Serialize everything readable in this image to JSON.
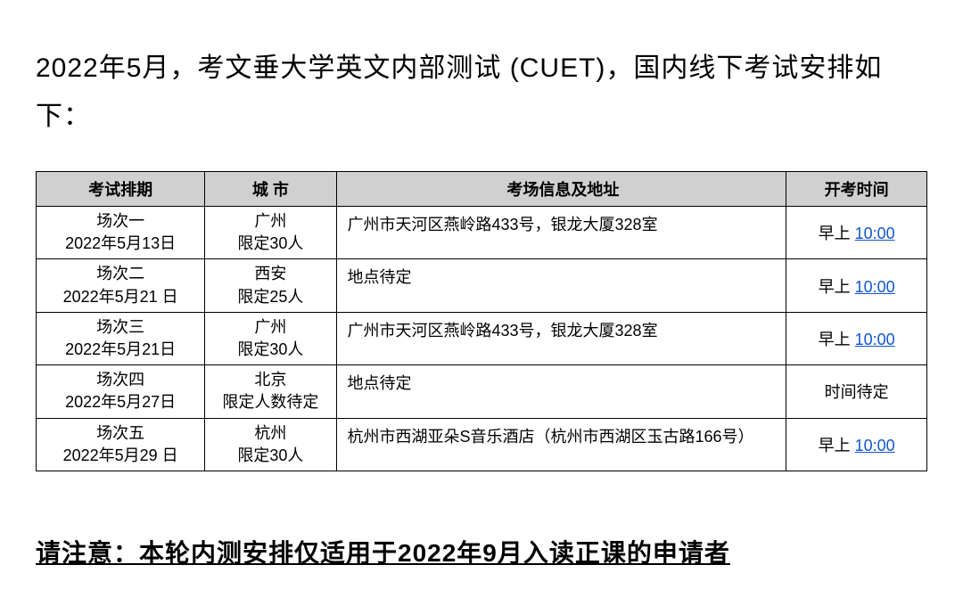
{
  "heading": "2022年5月，考文垂大学英文内部测试 (CUET)，国内线下考试安排如下：",
  "table": {
    "headers": {
      "session": "考试排期",
      "city": "城 市",
      "venue": "考场信息及地址",
      "time": "开考时间"
    },
    "rows": [
      {
        "session_label": "场次一",
        "session_date": "2022年5月13日",
        "city_name": "广州",
        "city_limit": "限定30人",
        "venue": "广州市天河区燕岭路433号，银龙大厦328室",
        "time_prefix": "早上 ",
        "time_link": "10:00",
        "time_plain": ""
      },
      {
        "session_label": "场次二",
        "session_date": "2022年5月21 日",
        "city_name": "西安",
        "city_limit": "限定25人",
        "venue": "地点待定",
        "time_prefix": "早上 ",
        "time_link": "10:00",
        "time_plain": ""
      },
      {
        "session_label": "场次三",
        "session_date": "2022年5月21日",
        "city_name": "广州",
        "city_limit": "限定30人",
        "venue": "广州市天河区燕岭路433号，银龙大厦328室",
        "time_prefix": "早上 ",
        "time_link": "10:00",
        "time_plain": ""
      },
      {
        "session_label": "场次四",
        "session_date": "2022年5月27日",
        "city_name": "北京",
        "city_limit": "限定人数待定",
        "venue": "地点待定",
        "time_prefix": "",
        "time_link": "",
        "time_plain": "时间待定"
      },
      {
        "session_label": "场次五",
        "session_date": "2022年5月29 日",
        "city_name": "杭州",
        "city_limit": "限定30人",
        "venue": "杭州市西湖亚朵S音乐酒店（杭州市西湖区玉古路166号）",
        "time_prefix": "早上 ",
        "time_link": "10:00",
        "time_plain": ""
      }
    ]
  },
  "notice": "请注意：本轮内测安排仅适用于2022年9月入读正课的申请者",
  "colors": {
    "header_bg": "#d0d0d0",
    "border": "#000000",
    "link": "#1155cc",
    "text": "#000000",
    "background": "#ffffff"
  }
}
